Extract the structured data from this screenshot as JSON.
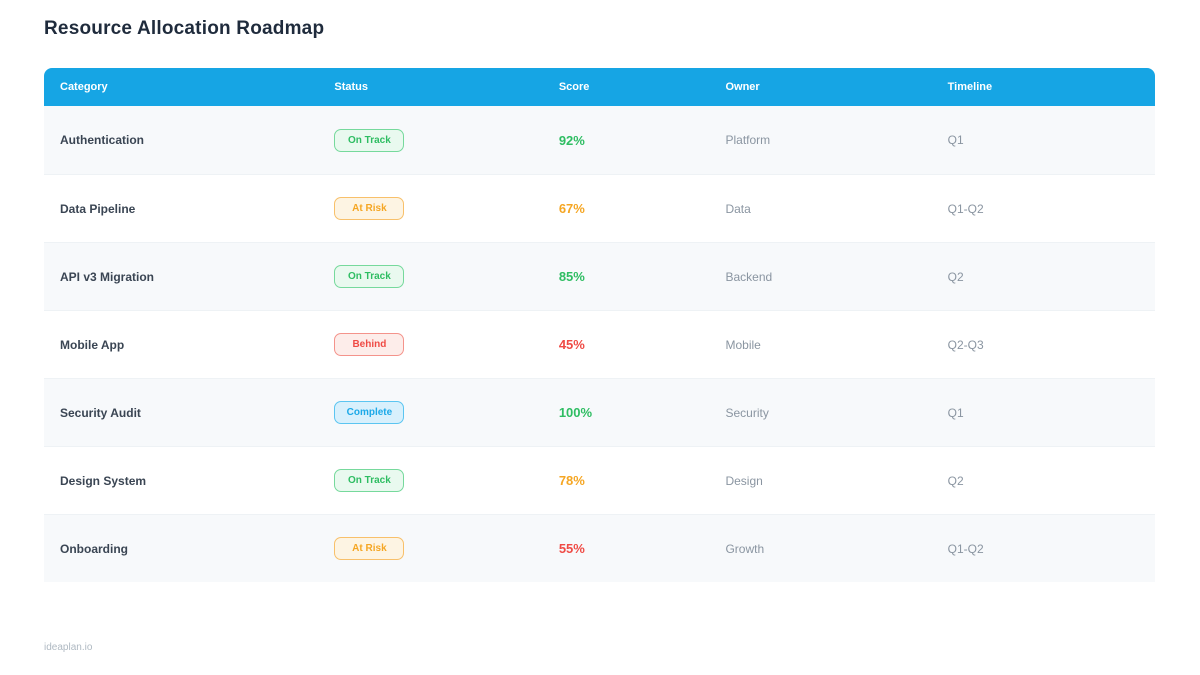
{
  "page": {
    "title": "Resource Allocation Roadmap",
    "footer": "ideaplan.io"
  },
  "table": {
    "columns": [
      "Category",
      "Status",
      "Score",
      "Owner",
      "Timeline"
    ],
    "column_widths": [
      "24.7%",
      "20.2%",
      "15.0%",
      "20.0%",
      "20.1%"
    ],
    "rows": [
      {
        "category": "Authentication",
        "status": "On Track",
        "status_variant": "green",
        "score": "92%",
        "score_color": "green",
        "owner": "Platform",
        "timeline": "Q1"
      },
      {
        "category": "Data Pipeline",
        "status": "At Risk",
        "status_variant": "orange",
        "score": "67%",
        "score_color": "orange",
        "owner": "Data",
        "timeline": "Q1-Q2"
      },
      {
        "category": "API v3 Migration",
        "status": "On Track",
        "status_variant": "green",
        "score": "85%",
        "score_color": "green",
        "owner": "Backend",
        "timeline": "Q2"
      },
      {
        "category": "Mobile App",
        "status": "Behind",
        "status_variant": "red",
        "score": "45%",
        "score_color": "red",
        "owner": "Mobile",
        "timeline": "Q2-Q3"
      },
      {
        "category": "Security Audit",
        "status": "Complete",
        "status_variant": "blue",
        "score": "100%",
        "score_color": "green",
        "owner": "Security",
        "timeline": "Q1"
      },
      {
        "category": "Design System",
        "status": "On Track",
        "status_variant": "green",
        "score": "78%",
        "score_color": "orange",
        "owner": "Design",
        "timeline": "Q2"
      },
      {
        "category": "Onboarding",
        "status": "At Risk",
        "status_variant": "orange",
        "score": "55%",
        "score_color": "red",
        "owner": "Growth",
        "timeline": "Q1-Q2"
      }
    ]
  },
  "colors": {
    "header-bg": "#16A5E4",
    "title-text": "#1F2B3C",
    "category-text": "#3A4553",
    "muted-text": "#8A95A1",
    "footer-text": "#AFB9C2",
    "row-alt-bg": "#F7F9FB",
    "row-border": "#EEF2F5",
    "green": "#2EBD62",
    "green-bg": "#E9F9EF",
    "green-border": "#76D99C",
    "orange": "#F5A623",
    "orange-bg": "#FDF4E3",
    "orange-border": "#F8C06A",
    "red": "#EF4B45",
    "red-bg": "#FDEDEA",
    "red-border": "#F4938B",
    "blue": "#1CA9E8",
    "blue-bg": "#D8F0FC",
    "blue-border": "#5BC5F1"
  }
}
